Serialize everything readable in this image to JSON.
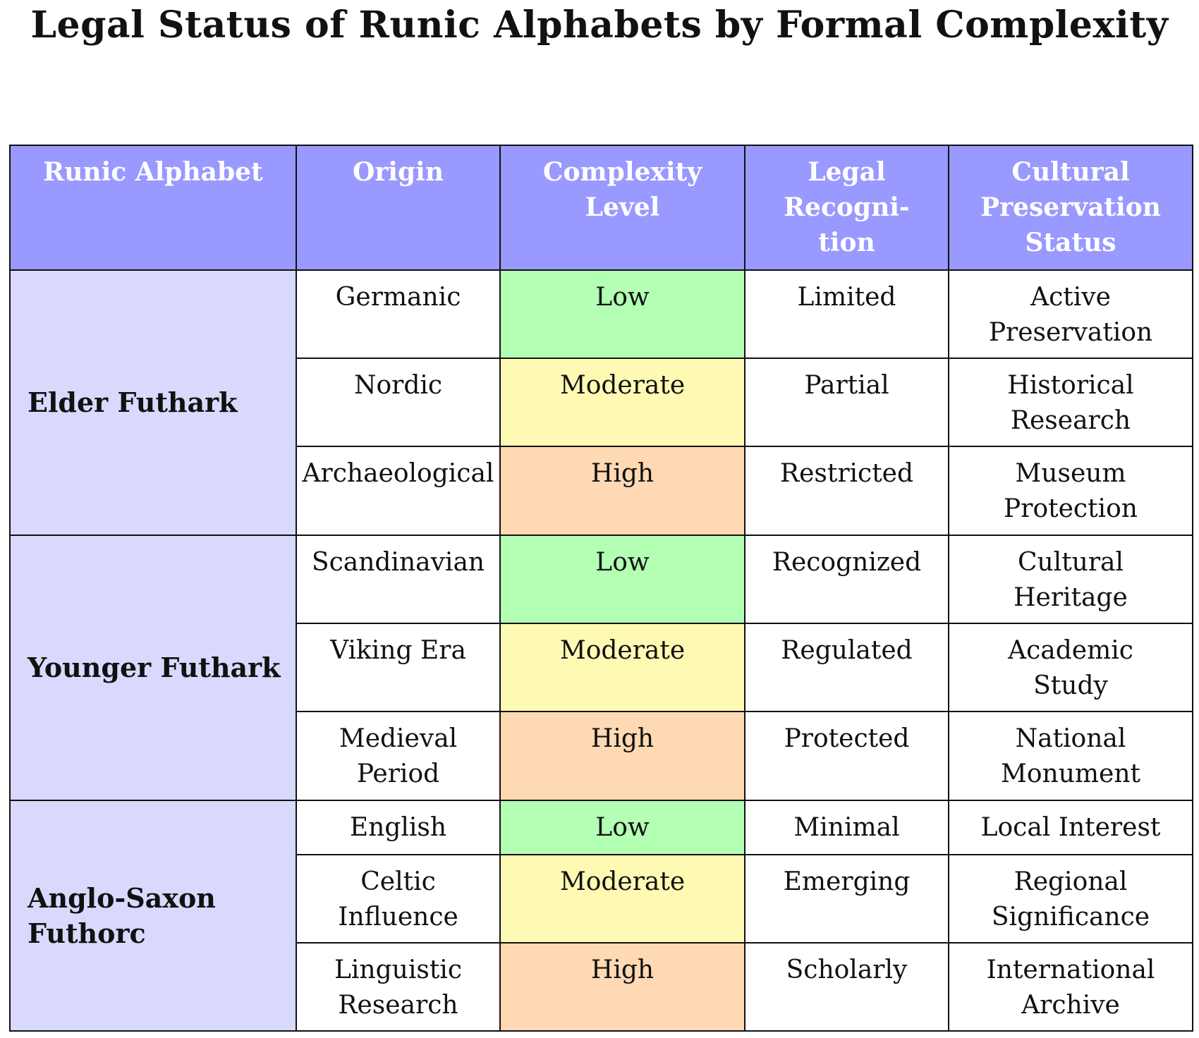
{
  "title": "Legal Status of Runic Alphabets by Formal Complexity",
  "colors": {
    "header_bg": "#9999ff",
    "group_bg": "#d9d9fe",
    "complexity_low": "#b3ffb3",
    "complexity_moderate": "#fffab3",
    "complexity_high": "#ffd9b3"
  },
  "headers": {
    "alphabet": "Runic Alphabet",
    "origin": "Origin",
    "complexity": "Complexity\nLevel",
    "legal": "Legal\nRecogni-\ntion",
    "cultural": "Cultural\nPreservation\nStatus"
  },
  "groups": [
    {
      "name": "Elder Futhark",
      "rows": [
        {
          "origin": "Germanic",
          "complexity": "Low",
          "legal": "Limited",
          "cultural": "Active\nPreservation"
        },
        {
          "origin": "Nordic",
          "complexity": "Moderate",
          "legal": "Partial",
          "cultural": "Historical\nResearch"
        },
        {
          "origin": "Archaeological",
          "complexity": "High",
          "legal": "Restricted",
          "cultural": "Museum\nProtection"
        }
      ]
    },
    {
      "name": "Younger Futhark",
      "rows": [
        {
          "origin": "Scandinavian",
          "complexity": "Low",
          "legal": "Recognized",
          "cultural": "Cultural\nHeritage"
        },
        {
          "origin": "Viking Era",
          "complexity": "Moderate",
          "legal": "Regulated",
          "cultural": "Academic\nStudy"
        },
        {
          "origin": "Medieval\nPeriod",
          "complexity": "High",
          "legal": "Protected",
          "cultural": "National\nMonument"
        }
      ]
    },
    {
      "name": "Anglo-Saxon\nFuthorc",
      "rows": [
        {
          "origin": "English",
          "complexity": "Low",
          "legal": "Minimal",
          "cultural": "Local Interest"
        },
        {
          "origin": "Celtic\nInfluence",
          "complexity": "Moderate",
          "legal": "Emerging",
          "cultural": "Regional\nSignificance"
        },
        {
          "origin": "Linguistic\nResearch",
          "complexity": "High",
          "legal": "Scholarly",
          "cultural": "International\nArchive"
        }
      ]
    }
  ]
}
